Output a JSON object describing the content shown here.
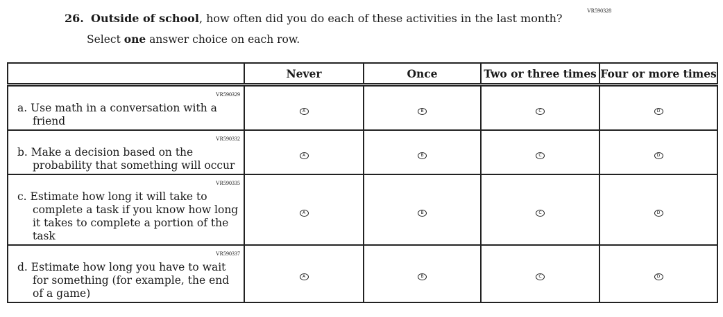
{
  "question": {
    "code": "VR590328",
    "number": "26.",
    "lead_bold": "Outside of school",
    "text_rest": ", how often did you do each of these activities in the last month?",
    "instruction_pre": "Select ",
    "instruction_bold": "one",
    "instruction_post": " answer choice on each row."
  },
  "columns": [
    "Never",
    "Once",
    "Two or three times",
    "Four or more times"
  ],
  "bubble_letters": [
    "A",
    "B",
    "C",
    "D"
  ],
  "rows": [
    {
      "code": "VR590329",
      "label": "a.  Use math in a conversation with a friend"
    },
    {
      "code": "VR590332",
      "label": "b.  Make a decision based on the probability that something will occur"
    },
    {
      "code": "VR590335",
      "label": "c.  Estimate how long it will take to complete a task if you know how long it takes to complete a portion of the task"
    },
    {
      "code": "VR590337",
      "label": "d.  Estimate how long you have to wait for something (for example, the end of a game)"
    }
  ]
}
